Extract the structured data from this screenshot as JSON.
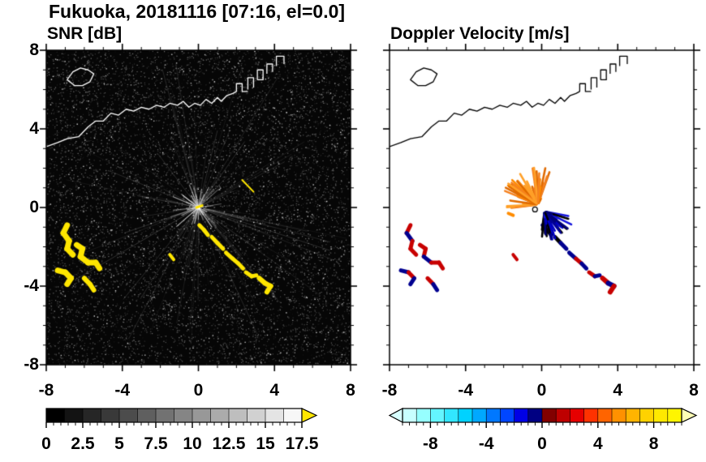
{
  "title": "Fukuoka, 20181116 [07:16, el=0.0]",
  "coastline": {
    "main": [
      [
        -8,
        3.1
      ],
      [
        -7.4,
        3.3
      ],
      [
        -6.9,
        3.5
      ],
      [
        -6.3,
        3.6
      ],
      [
        -5.8,
        4.1
      ],
      [
        -5.4,
        4.4
      ],
      [
        -5.0,
        4.4
      ],
      [
        -4.6,
        4.8
      ],
      [
        -4.2,
        4.7
      ],
      [
        -3.8,
        5.0
      ],
      [
        -3.4,
        4.9
      ],
      [
        -3.0,
        5.1
      ],
      [
        -2.6,
        5.0
      ],
      [
        -2.2,
        5.2
      ],
      [
        -1.8,
        5.1
      ],
      [
        -1.5,
        5.3
      ],
      [
        -1.1,
        5.2
      ],
      [
        -0.8,
        5.4
      ],
      [
        -0.5,
        5.1
      ],
      [
        -0.2,
        5.3
      ],
      [
        0.1,
        5.2
      ],
      [
        0.4,
        5.5
      ],
      [
        0.7,
        5.3
      ],
      [
        1.0,
        5.6
      ],
      [
        1.2,
        5.4
      ],
      [
        1.5,
        5.7
      ],
      [
        1.8,
        5.8
      ],
      [
        2.0,
        5.9
      ]
    ],
    "island": [
      [
        -6.9,
        6.5
      ],
      [
        -6.6,
        6.9
      ],
      [
        -6.2,
        7.1
      ],
      [
        -5.8,
        7.0
      ],
      [
        -5.5,
        6.8
      ],
      [
        -5.7,
        6.4
      ],
      [
        -6.1,
        6.2
      ],
      [
        -6.5,
        6.2
      ],
      [
        -6.9,
        6.5
      ]
    ],
    "blocks": [
      [
        [
          2.0,
          5.9
        ],
        [
          2.0,
          6.3
        ],
        [
          2.3,
          6.3
        ],
        [
          2.3,
          5.9
        ],
        [
          2.6,
          5.9
        ]
      ],
      [
        [
          2.6,
          6.0
        ],
        [
          2.6,
          6.6
        ],
        [
          2.9,
          6.6
        ],
        [
          2.9,
          6.1
        ]
      ],
      [
        [
          3.1,
          6.5
        ],
        [
          3.1,
          7.0
        ],
        [
          3.4,
          7.0
        ],
        [
          3.4,
          6.5
        ],
        [
          3.1,
          6.5
        ]
      ],
      [
        [
          3.6,
          6.8
        ],
        [
          3.6,
          7.3
        ],
        [
          3.9,
          7.3
        ],
        [
          3.9,
          6.9
        ]
      ],
      [
        [
          4.1,
          7.2
        ],
        [
          4.1,
          7.7
        ],
        [
          4.5,
          7.7
        ],
        [
          4.5,
          7.3
        ]
      ]
    ]
  },
  "chart_data": [
    {
      "type": "heatmap",
      "title": "SNR [dB]",
      "xlabel": "",
      "ylabel": "",
      "xlim": [
        -8,
        8
      ],
      "ylim": [
        -8,
        8
      ],
      "xticks": [
        -8,
        -4,
        0,
        4,
        8
      ],
      "yticks": [
        -8,
        -4,
        0,
        4,
        8
      ],
      "minor_tick_step": 1,
      "background": "#060606",
      "coastline_color": "#ffffff",
      "noise": true,
      "colorbar": {
        "min": 0,
        "max": 17.5,
        "ticks": [
          0,
          2.5,
          5,
          7.5,
          10,
          12.5,
          15,
          17.5
        ],
        "minor_step": 0.5,
        "colors": [
          "#000000",
          "#131313",
          "#262626",
          "#393939",
          "#4c4c4c",
          "#5f5f5f",
          "#727272",
          "#858585",
          "#989898",
          "#ababab",
          "#bebebe",
          "#d1d1d1",
          "#e4e4e4",
          "#f7f7f7"
        ],
        "under_color": null,
        "over_color": "#ffe600"
      },
      "echoes": [
        {
          "points": [
            [
              -6.9,
              -0.9
            ],
            [
              -7.1,
              -1.3
            ],
            [
              -6.8,
              -1.7
            ],
            [
              -6.9,
              -2.1
            ],
            [
              -6.6,
              -2.4
            ]
          ],
          "colors": [
            "#ffe600"
          ],
          "width": 7
        },
        {
          "points": [
            [
              -6.4,
              -1.9
            ],
            [
              -6.1,
              -2.1
            ],
            [
              -6.2,
              -2.5
            ],
            [
              -5.8,
              -2.8
            ],
            [
              -5.4,
              -2.8
            ],
            [
              -5.2,
              -3.1
            ]
          ],
          "colors": [
            "#ffe600"
          ],
          "width": 7
        },
        {
          "points": [
            [
              -7.4,
              -3.2
            ],
            [
              -7.0,
              -3.3
            ],
            [
              -6.7,
              -3.6
            ],
            [
              -6.9,
              -3.9
            ]
          ],
          "colors": [
            "#ffe600"
          ],
          "width": 7
        },
        {
          "points": [
            [
              -6.0,
              -3.6
            ],
            [
              -5.7,
              -3.9
            ],
            [
              -5.5,
              -4.2
            ]
          ],
          "colors": [
            "#ffe600"
          ],
          "width": 6
        },
        {
          "points": [
            [
              -1.5,
              -2.4
            ],
            [
              -1.3,
              -2.65
            ]
          ],
          "colors": [
            "#ffe600"
          ],
          "width": 4
        },
        {
          "points": [
            [
              0.05,
              -0.9
            ],
            [
              0.3,
              -1.15
            ],
            [
              0.5,
              -1.4
            ]
          ],
          "colors": [
            "#ffe600"
          ],
          "width": 5
        },
        {
          "points": [
            [
              0.7,
              -1.5
            ],
            [
              1.0,
              -1.8
            ],
            [
              1.3,
              -2.1
            ]
          ],
          "colors": [
            "#ffe600"
          ],
          "width": 5
        },
        {
          "points": [
            [
              1.45,
              -2.3
            ],
            [
              1.8,
              -2.6
            ],
            [
              2.1,
              -2.85
            ],
            [
              2.35,
              -3.1
            ]
          ],
          "colors": [
            "#ffe600"
          ],
          "width": 5
        },
        {
          "points": [
            [
              2.5,
              -3.3
            ],
            [
              2.8,
              -3.5
            ],
            [
              3.05,
              -3.45
            ]
          ],
          "colors": [
            "#ffe600"
          ],
          "width": 5
        },
        {
          "points": [
            [
              3.2,
              -3.6
            ],
            [
              3.5,
              -3.85
            ],
            [
              3.8,
              -4.0
            ],
            [
              3.6,
              -4.3
            ]
          ],
          "colors": [
            "#ffe600"
          ],
          "width": 6
        },
        {
          "points": [
            [
              2.3,
              1.4
            ],
            [
              2.9,
              0.8
            ]
          ],
          "colors": [
            "#ffe600"
          ],
          "width": 2
        },
        {
          "points": [
            [
              -0.1,
              0.0
            ],
            [
              0.2,
              0.1
            ]
          ],
          "colors": [
            "#ffe600"
          ],
          "width": 3
        }
      ]
    },
    {
      "type": "heatmap",
      "title": "Doppler Velocity [m/s]",
      "xlabel": "",
      "ylabel": "",
      "xlim": [
        -8,
        8
      ],
      "ylim": [
        -8,
        8
      ],
      "xticks": [
        -8,
        -4,
        0,
        4,
        8
      ],
      "yticks": [
        -8,
        -4,
        0,
        4,
        8
      ],
      "minor_tick_step": 1,
      "background": "#ffffff",
      "coastline_color": "#000000",
      "noise": false,
      "colorbar": {
        "min": -10,
        "max": 10,
        "ticks": [
          -8,
          -4,
          0,
          4,
          8
        ],
        "minor_step": 0.5,
        "colors": [
          "#c8ffff",
          "#96ffff",
          "#64f5ff",
          "#32e6ff",
          "#00d2ff",
          "#00a8ff",
          "#0078ff",
          "#0046ff",
          "#0000e6",
          "#000082",
          "#820000",
          "#be0000",
          "#e60000",
          "#ff3200",
          "#ff6400",
          "#ff9100",
          "#ffb400",
          "#ffd200",
          "#ffe800",
          "#fff500"
        ],
        "under_color": "#d8ffff",
        "over_color": "#ffffb4"
      },
      "echoes": [
        {
          "points": [
            [
              -6.9,
              -0.9
            ],
            [
              -7.1,
              -1.3
            ],
            [
              -6.8,
              -1.7
            ],
            [
              -6.9,
              -2.1
            ],
            [
              -6.6,
              -2.4
            ]
          ],
          "colors": [
            "#c80000",
            "#000090",
            "#c80000"
          ],
          "width": 5
        },
        {
          "points": [
            [
              -6.4,
              -1.9
            ],
            [
              -6.1,
              -2.1
            ],
            [
              -6.2,
              -2.5
            ],
            [
              -5.8,
              -2.8
            ],
            [
              -5.4,
              -2.8
            ],
            [
              -5.2,
              -3.1
            ]
          ],
          "colors": [
            "#c80000",
            "#c80000",
            "#000090",
            "#c80000"
          ],
          "width": 5
        },
        {
          "points": [
            [
              -7.4,
              -3.2
            ],
            [
              -7.0,
              -3.3
            ],
            [
              -6.7,
              -3.6
            ],
            [
              -6.9,
              -3.9
            ]
          ],
          "colors": [
            "#000090",
            "#c80000"
          ],
          "width": 5
        },
        {
          "points": [
            [
              -6.0,
              -3.6
            ],
            [
              -5.7,
              -3.9
            ],
            [
              -5.5,
              -4.2
            ]
          ],
          "colors": [
            "#c80000",
            "#000090"
          ],
          "width": 5
        },
        {
          "points": [
            [
              -1.5,
              -2.4
            ],
            [
              -1.3,
              -2.65
            ]
          ],
          "colors": [
            "#c80000"
          ],
          "width": 4
        },
        {
          "points": [
            [
              0.05,
              -0.9
            ],
            [
              0.3,
              -1.15
            ],
            [
              0.5,
              -1.4
            ]
          ],
          "colors": [
            "#000090",
            "#000000"
          ],
          "width": 5
        },
        {
          "points": [
            [
              0.7,
              -1.5
            ],
            [
              1.0,
              -1.8
            ],
            [
              1.3,
              -2.1
            ]
          ],
          "colors": [
            "#000000",
            "#000090"
          ],
          "width": 5
        },
        {
          "points": [
            [
              1.45,
              -2.3
            ],
            [
              1.8,
              -2.6
            ],
            [
              2.1,
              -2.85
            ],
            [
              2.35,
              -3.1
            ]
          ],
          "colors": [
            "#000090",
            "#c80000",
            "#000090"
          ],
          "width": 5
        },
        {
          "points": [
            [
              2.5,
              -3.3
            ],
            [
              2.8,
              -3.5
            ],
            [
              3.05,
              -3.45
            ]
          ],
          "colors": [
            "#c80000",
            "#000090"
          ],
          "width": 5
        },
        {
          "points": [
            [
              3.2,
              -3.6
            ],
            [
              3.5,
              -3.85
            ],
            [
              3.8,
              -4.0
            ],
            [
              3.6,
              -4.3
            ]
          ],
          "colors": [
            "#c80000",
            "#000090",
            "#c80000"
          ],
          "width": 6
        },
        {
          "points": [
            [
              -1.75,
              -0.3
            ],
            [
              -1.5,
              -0.4
            ]
          ],
          "colors": [
            "#ff8c00"
          ],
          "width": 4
        }
      ],
      "fans": [
        {
          "origin": [
            -0.2,
            0.15
          ],
          "angle_start": 60,
          "angle_end": 190,
          "count": 60,
          "len_min": 0.25,
          "len_max": 1.9,
          "colors": [
            "#ff8c00",
            "#f58220",
            "#e06a00",
            "#ffa028"
          ],
          "width": 2.6,
          "seed": 7
        },
        {
          "origin": [
            0.15,
            -0.2
          ],
          "angle_start": -100,
          "angle_end": -10,
          "count": 50,
          "len_min": 0.2,
          "len_max": 1.6,
          "colors": [
            "#0000c8",
            "#000078",
            "#1414dc",
            "#000096",
            "#000000"
          ],
          "width": 2.6,
          "seed": 13
        }
      ],
      "center_marker": {
        "pos": [
          -0.35,
          -0.1
        ],
        "r": 3,
        "stroke": "#000000",
        "fill": "#ffffff"
      }
    }
  ]
}
